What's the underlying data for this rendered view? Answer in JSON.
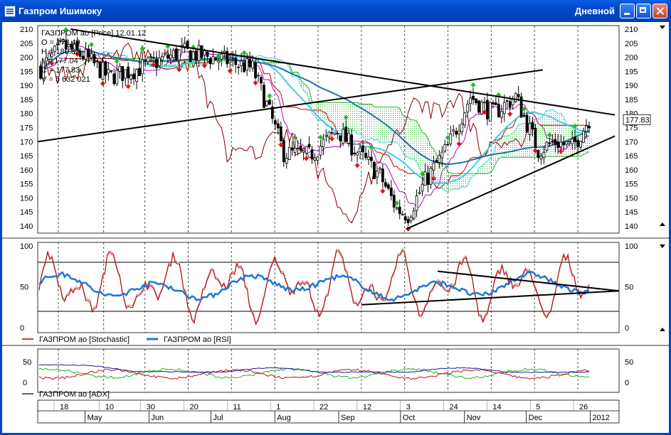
{
  "window": {
    "title": "Газпром Ишимоку",
    "timeframe": "Дневной"
  },
  "colors": {
    "candle": "#000000",
    "grid": "#555555",
    "ma_long": "#1a75a8",
    "ma_mid": "#40d0e0",
    "senkou": "#20b020",
    "kijun": "#c00000",
    "tenkan": "#c000c0",
    "chikou": "#800000",
    "stoch": "#b00000",
    "rsi": "#1e78d2",
    "adx": "#1a1aa0",
    "pdi": "#20b020",
    "mdi": "#c01010",
    "arrow_up": "#22bb22",
    "arrow_down": "#dd1111"
  },
  "chart_data": [
    {
      "type": "candlestick",
      "ylim": [
        138,
        211
      ],
      "yticks": [
        140,
        145,
        150,
        155,
        160,
        165,
        170,
        175,
        180,
        185,
        190,
        195,
        200,
        205,
        210
      ],
      "ohlc_info": [
        "ГАЗПРОМ ао [Price] 12.01.12",
        "O = 178.49",
        "H = 180.82",
        "L = 177.04",
        "C = 177.83",
        "V = 5 632 021"
      ],
      "last_price": "177.83",
      "trendlines": [
        {
          "from": [
            "2011-04-24",
            210
          ],
          "to": [
            "2012-01-13",
            179.5
          ]
        },
        {
          "from": [
            "2011-04-08",
            170
          ],
          "to": [
            "2011-12-09",
            195.5
          ]
        },
        {
          "from": [
            "2011-10-04",
            139
          ],
          "to": [
            "2012-01-13",
            172
          ]
        }
      ]
    },
    {
      "type": "line",
      "ylim": [
        0,
        100
      ],
      "yticks": [
        0,
        50,
        100
      ],
      "levels": [
        20,
        80
      ],
      "series": [
        {
          "name": "ГАЗПРОМ ао [Stochastic]"
        },
        {
          "name": "ГАЗПРОМ ао [RSI]"
        }
      ],
      "trendlines": [
        {
          "from": [
            "2011-10-19",
            69
          ],
          "to": [
            "2012-01-15",
            45
          ]
        },
        {
          "from": [
            "2011-09-12",
            28
          ],
          "to": [
            "2012-01-15",
            45
          ]
        }
      ]
    },
    {
      "type": "line",
      "ylim": [
        -5,
        70
      ],
      "yticks": [
        0,
        50
      ],
      "series": [
        {
          "name": "ГАЗПРОМ ао [ADX]"
        }
      ]
    }
  ],
  "time_axis": {
    "days": [
      {
        "label": "18",
        "date": "2011-04-18"
      },
      {
        "label": "10",
        "date": "2011-05-10"
      },
      {
        "label": "30",
        "date": "2011-05-30"
      },
      {
        "label": "20",
        "date": "2011-06-20"
      },
      {
        "label": "11",
        "date": "2011-07-11"
      },
      {
        "label": "1",
        "date": "2011-08-01"
      },
      {
        "label": "22",
        "date": "2011-08-22"
      },
      {
        "label": "12",
        "date": "2011-09-12"
      },
      {
        "label": "3",
        "date": "2011-10-03"
      },
      {
        "label": "24",
        "date": "2011-10-24"
      },
      {
        "label": "14",
        "date": "2011-11-14"
      },
      {
        "label": "5",
        "date": "2011-12-05"
      },
      {
        "label": "26",
        "date": "2011-12-26"
      }
    ],
    "months": [
      {
        "label": "May",
        "date": "2011-05-01"
      },
      {
        "label": "Jun",
        "date": "2011-06-01"
      },
      {
        "label": "Jul",
        "date": "2011-07-01"
      },
      {
        "label": "Aug",
        "date": "2011-08-01"
      },
      {
        "label": "Sep",
        "date": "2011-09-01"
      },
      {
        "label": "Oct",
        "date": "2011-10-01"
      },
      {
        "label": "Nov",
        "date": "2011-11-01"
      },
      {
        "label": "Dec",
        "date": "2011-12-01"
      },
      {
        "label": "2012",
        "date": "2012-01-01"
      }
    ]
  }
}
